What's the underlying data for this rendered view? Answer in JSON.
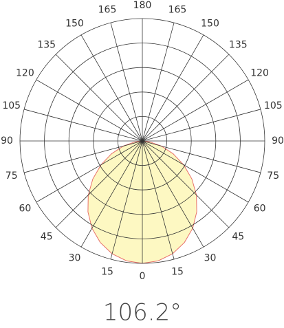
{
  "chart_data": {
    "type": "polar",
    "x": [
      -90,
      -82.5,
      -75,
      -67.5,
      -60,
      -52.5,
      -45,
      -37.5,
      -30,
      -22.5,
      -15,
      -7.5,
      0,
      7.5,
      15,
      22.5,
      30,
      37.5,
      45,
      52.5,
      60,
      67.5,
      75,
      82.5,
      90
    ],
    "values": [
      0,
      0.063,
      0.16,
      0.272,
      0.39,
      0.51,
      0.625,
      0.73,
      0.823,
      0.898,
      0.954,
      0.988,
      1,
      0.988,
      0.954,
      0.898,
      0.823,
      0.73,
      0.625,
      0.51,
      0.39,
      0.272,
      0.16,
      0.063,
      0
    ],
    "color": "#e8706a",
    "fill": "#fdf8c2",
    "rlim": [
      0,
      1
    ],
    "rticks": [
      0.2,
      0.4,
      0.6,
      0.8,
      1
    ],
    "angle_ticks": [
      0,
      15,
      30,
      45,
      60,
      75,
      90,
      105,
      120,
      135,
      150,
      165,
      180
    ],
    "beam_angle_label": "106.2°"
  }
}
